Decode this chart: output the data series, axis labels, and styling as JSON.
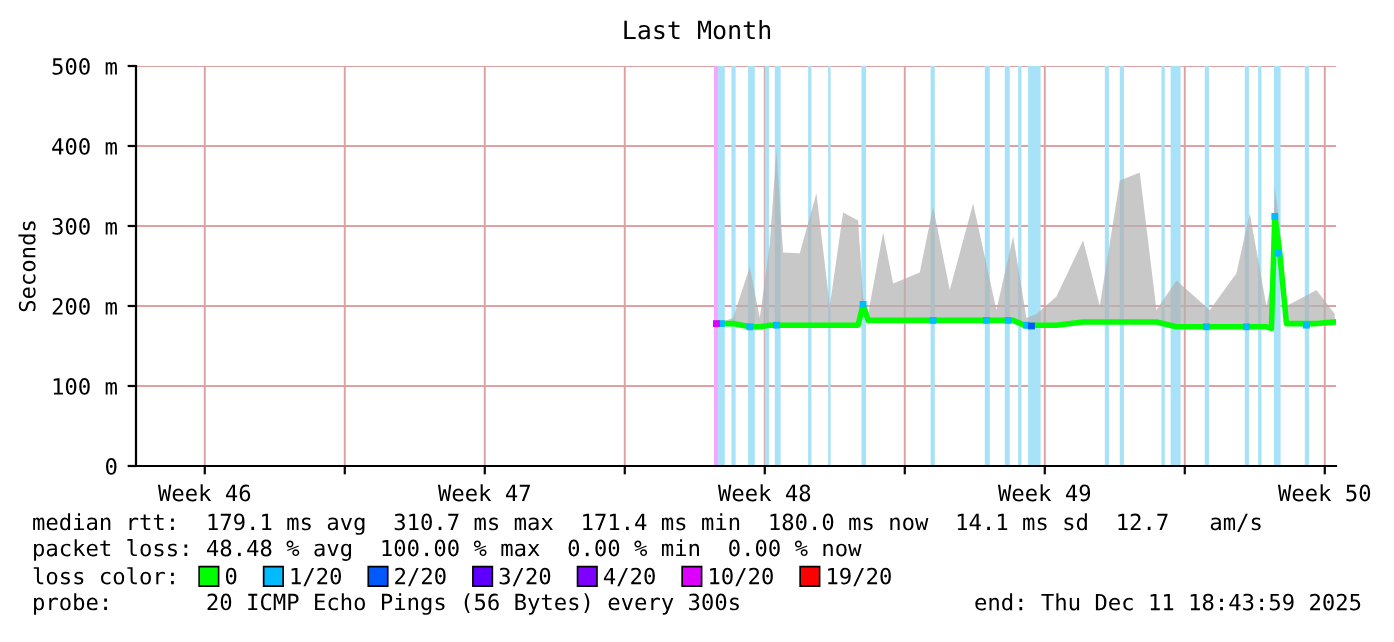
{
  "chart_data": {
    "type": "line",
    "title": "Last Month",
    "ylabel": "Seconds",
    "xlim": [
      "2025-11-11T18:44",
      "2025-12-11T18:44"
    ],
    "xticks": [
      {
        "value": "2025-11-13T12:00",
        "label": "Week 46"
      },
      {
        "value": "2025-11-17",
        "label": null
      },
      {
        "value": "2025-11-20T12:00",
        "label": "Week 47"
      },
      {
        "value": "2025-11-24",
        "label": null
      },
      {
        "value": "2025-11-27T12:00",
        "label": "Week 48"
      },
      {
        "value": "2025-12-01",
        "label": null
      },
      {
        "value": "2025-12-04T12:00",
        "label": "Week 49"
      },
      {
        "value": "2025-12-08",
        "label": null
      },
      {
        "value": "2025-12-11T12:00",
        "label": "Week 50"
      }
    ],
    "ylim": [
      0,
      500
    ],
    "yticks": [
      0,
      {
        "value": 100,
        "label": "100 m"
      },
      {
        "value": 200,
        "label": "200 m"
      },
      {
        "value": 300,
        "label": "300 m"
      },
      {
        "value": 400,
        "label": "400 m"
      },
      {
        "value": 500,
        "label": "500 m"
      }
    ],
    "grid": true,
    "legend": "bottom",
    "legend_title": "loss color:",
    "series": [
      {
        "name": "0",
        "color": "#00ff00",
        "x": [
          "2025-11-26T07:00",
          "2025-11-26T17:00",
          "2025-11-27T03:00",
          "2025-11-27T09:00",
          "2025-11-27T15:00",
          "2025-11-27T19:00",
          "2025-11-27T23:00",
          "2025-11-28T09:00",
          "2025-11-28T19:00",
          "2025-11-29T03:00",
          "2025-11-29T11:00",
          "2025-11-29T20:00",
          "2025-11-29T23:00",
          "2025-11-30T02:00",
          "2025-11-30T11:00",
          "2025-11-30T17:00",
          "2025-12-01T09:00",
          "2025-12-01T17:00",
          "2025-12-02T03:00",
          "2025-12-02T17:00",
          "2025-12-03T07:00",
          "2025-12-03T17:00",
          "2025-12-04T01:00",
          "2025-12-04T07:00",
          "2025-12-04T19:00",
          "2025-12-05T11:00",
          "2025-12-05T21:00",
          "2025-12-06T09:00",
          "2025-12-06T21:00",
          "2025-12-07T07:00",
          "2025-12-07T19:00",
          "2025-12-08T15:00",
          "2025-12-09T07:00",
          "2025-12-09T15:00",
          "2025-12-10T01:00",
          "2025-12-10T04:00",
          "2025-12-10T06:00",
          "2025-12-10T09:00",
          "2025-12-10T13:00",
          "2025-12-11T07:00",
          "2025-12-11T18:00"
        ],
        "values": [
          178,
          178,
          174,
          174,
          176,
          176,
          176,
          176,
          176,
          176,
          176,
          176,
          202,
          182,
          182,
          182,
          182,
          182,
          182,
          182,
          182,
          182,
          175,
          176,
          176,
          180,
          180,
          180,
          180,
          180,
          174,
          174,
          174,
          174,
          174,
          172,
          312,
          266,
          178,
          178,
          180
        ],
        "lower": [
          178,
          178,
          174,
          174,
          176,
          176,
          176,
          176,
          176,
          176,
          176,
          176,
          202,
          182,
          182,
          182,
          182,
          182,
          182,
          182,
          182,
          182,
          175,
          176,
          176,
          180,
          180,
          180,
          180,
          180,
          174,
          174,
          174,
          174,
          174,
          172,
          312,
          266,
          178,
          178,
          180
        ],
        "upper": [
          178,
          185,
          249,
          185,
          278,
          395,
          267,
          266,
          341,
          200,
          317,
          307,
          210,
          190,
          292,
          228,
          242,
          324,
          220,
          328,
          195,
          287,
          185,
          190,
          212,
          282,
          200,
          357,
          367,
          195,
          232,
          195,
          241,
          316,
          200,
          230,
          349,
          300,
          200,
          220,
          190
        ]
      },
      {
        "name": "1/20",
        "type": "scatter",
        "color": "#00bbff",
        "x": [
          "2025-11-26T10:00",
          "2025-11-27T03:00",
          "2025-11-27T19:00",
          "2025-11-29T23:00",
          "2025-12-01T17:00",
          "2025-12-03T01:00",
          "2025-12-03T14:00",
          "2025-12-04T01:00",
          "2025-12-08T13:00",
          "2025-12-09T13:00",
          "2025-12-10T06:00",
          "2025-12-10T08:00",
          "2025-12-11T01:00"
        ],
        "values": [
          178,
          174,
          176,
          202,
          182,
          182,
          182,
          176,
          174,
          174,
          312,
          266,
          176
        ]
      },
      {
        "name": "2/20",
        "type": "scatter",
        "color": "#0059ff",
        "x": [
          "2025-12-04T04:00"
        ],
        "values": [
          175
        ]
      },
      {
        "name": "3/20",
        "type": "scatter",
        "color": "#5e00ff"
      },
      {
        "name": "4/20",
        "type": "scatter",
        "color": "#7e00ff"
      },
      {
        "name": "10/20",
        "type": "scatter",
        "color": "#dd00ff",
        "x": [
          "2025-11-26T07:00"
        ],
        "values": [
          178
        ]
      },
      {
        "name": "19/20",
        "type": "scatter",
        "color": "#ff0000"
      }
    ],
    "bands": [
      {
        "axis": "x",
        "from": "2025-11-26T05:30",
        "to": "2025-11-26T08:00",
        "color": "#f4a8fb"
      },
      {
        "axis": "x",
        "from": "2025-11-26T08:00",
        "to": "2025-11-26T12:00",
        "color": "#a8e2f8"
      },
      {
        "axis": "x",
        "from": "2025-11-26T16:00",
        "to": "2025-11-26T18:30",
        "color": "#a8e2f8"
      },
      {
        "axis": "x",
        "from": "2025-11-27T02:00",
        "to": "2025-11-27T06:00",
        "color": "#a8e2f8"
      },
      {
        "axis": "x",
        "from": "2025-11-27T12:00",
        "to": "2025-11-27T14:30",
        "color": "#a8e2f8"
      },
      {
        "axis": "x",
        "from": "2025-11-27T18:00",
        "to": "2025-11-27T21:30",
        "color": "#a8e2f8"
      },
      {
        "axis": "x",
        "from": "2025-11-28T14:00",
        "to": "2025-11-28T16:00",
        "color": "#a8e2f8"
      },
      {
        "axis": "x",
        "from": "2025-11-29T02:00",
        "to": "2025-11-29T03:30",
        "color": "#a8e2f8"
      },
      {
        "axis": "x",
        "from": "2025-11-29T22:00",
        "to": "2025-11-30T00:45",
        "color": "#a8e2f8"
      },
      {
        "axis": "x",
        "from": "2025-12-01T15:30",
        "to": "2025-12-01T18:00",
        "color": "#a8e2f8"
      },
      {
        "axis": "x",
        "from": "2025-12-03T00:00",
        "to": "2025-12-03T03:00",
        "color": "#a8e2f8"
      },
      {
        "axis": "x",
        "from": "2025-12-03T12:00",
        "to": "2025-12-03T15:00",
        "color": "#a8e2f8"
      },
      {
        "axis": "x",
        "from": "2025-12-03T20:00",
        "to": "2025-12-03T22:00",
        "color": "#a8e2f8"
      },
      {
        "axis": "x",
        "from": "2025-12-04T02:00",
        "to": "2025-12-04T09:30",
        "color": "#a8e2f8"
      },
      {
        "axis": "x",
        "from": "2025-12-06T00:00",
        "to": "2025-12-06T02:30",
        "color": "#a8e2f8"
      },
      {
        "axis": "x",
        "from": "2025-12-06T09:00",
        "to": "2025-12-06T11:30",
        "color": "#a8e2f8"
      },
      {
        "axis": "x",
        "from": "2025-12-07T10:00",
        "to": "2025-12-07T12:00",
        "color": "#a8e2f8"
      },
      {
        "axis": "x",
        "from": "2025-12-07T15:30",
        "to": "2025-12-07T21:30",
        "color": "#a8e2f8"
      },
      {
        "axis": "x",
        "from": "2025-12-08T12:00",
        "to": "2025-12-08T14:30",
        "color": "#a8e2f8"
      },
      {
        "axis": "x",
        "from": "2025-12-09T12:00",
        "to": "2025-12-09T14:30",
        "color": "#a8e2f8"
      },
      {
        "axis": "x",
        "from": "2025-12-09T20:00",
        "to": "2025-12-09T22:00",
        "color": "#a8e2f8"
      },
      {
        "axis": "x",
        "from": "2025-12-10T05:30",
        "to": "2025-12-10T09:30",
        "color": "#a8e2f8"
      },
      {
        "axis": "x",
        "from": "2025-12-11T00:00",
        "to": "2025-12-11T02:30",
        "color": "#a8e2f8"
      }
    ],
    "annotations": [
      "median rtt:  179.1 ms avg  310.7 ms max  171.4 ms min  180.0 ms now  14.1 ms sd  12.7   am/s",
      "packet loss: 48.48 % avg  100.00 % max  0.00 % min  0.00 % now",
      "probe:       20 ICMP Echo Pings (56 Bytes) every 300s",
      "end: Thu Dec 11 18:43:59 2025"
    ]
  }
}
